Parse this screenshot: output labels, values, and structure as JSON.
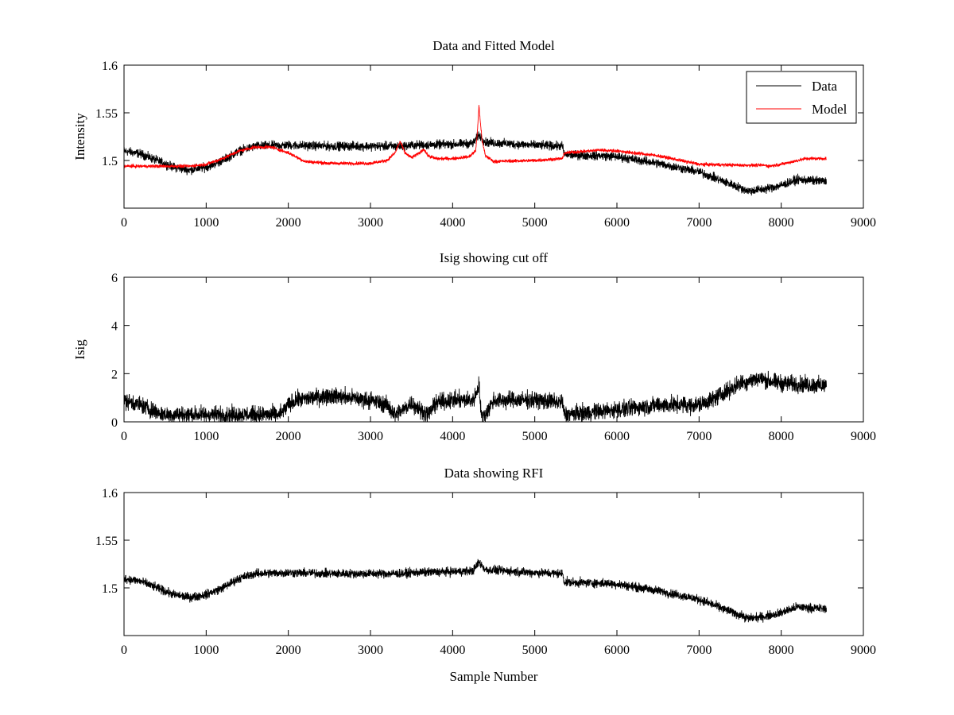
{
  "figure": {
    "background": "#ffffff",
    "data_color": "#000000",
    "model_color": "#ff0000"
  },
  "chart_data": [
    {
      "type": "line",
      "title": "Data and Fitted Model",
      "xlabel": "",
      "ylabel": "Intensity",
      "xlim": [
        0,
        9000
      ],
      "ylim": [
        1.45,
        1.6
      ],
      "xticks": [
        "0",
        "1000",
        "2000",
        "3000",
        "4000",
        "5000",
        "6000",
        "7000",
        "8000",
        "9000"
      ],
      "yticks": [
        "1.5",
        "1.55",
        "1.6"
      ],
      "ytick_values": [
        1.5,
        1.55,
        1.6
      ],
      "grid": false,
      "legend": {
        "placement": "top-right",
        "entries": [
          "Data",
          "Model"
        ]
      },
      "series": [
        {
          "name": "Data",
          "color": "#000000",
          "noise": 0.004,
          "x": [
            0,
            200,
            400,
            600,
            800,
            1000,
            1200,
            1400,
            1600,
            2000,
            2500,
            3000,
            3400,
            3500,
            4000,
            4250,
            4320,
            4400,
            5000,
            5340,
            5360,
            5800,
            6000,
            6500,
            7000,
            7300,
            7600,
            7800,
            8000,
            8200,
            8550
          ],
          "y": [
            1.51,
            1.507,
            1.5,
            1.493,
            1.49,
            1.493,
            1.5,
            1.51,
            1.515,
            1.516,
            1.515,
            1.515,
            1.515,
            1.516,
            1.517,
            1.518,
            1.527,
            1.519,
            1.516,
            1.515,
            1.506,
            1.505,
            1.504,
            1.497,
            1.488,
            1.478,
            1.468,
            1.47,
            1.474,
            1.48,
            1.478
          ]
        },
        {
          "name": "Model",
          "color": "#ff0000",
          "noise": 0.0015,
          "x": [
            0,
            500,
            800,
            1000,
            1200,
            1400,
            1600,
            1800,
            2000,
            2200,
            2500,
            2800,
            3000,
            3200,
            3300,
            3360,
            3420,
            3500,
            3600,
            3650,
            3700,
            3800,
            4000,
            4200,
            4280,
            4300,
            4320,
            4360,
            4400,
            4500,
            5000,
            5340,
            5360,
            5800,
            6000,
            6500,
            7000,
            7500,
            7800,
            7850,
            8000,
            8200,
            8300,
            8550
          ],
          "y": [
            1.494,
            1.494,
            1.494,
            1.496,
            1.502,
            1.51,
            1.514,
            1.514,
            1.508,
            1.499,
            1.497,
            1.497,
            1.497,
            1.5,
            1.508,
            1.52,
            1.508,
            1.503,
            1.508,
            1.512,
            1.505,
            1.502,
            1.502,
            1.504,
            1.51,
            1.528,
            1.557,
            1.52,
            1.505,
            1.499,
            1.5,
            1.502,
            1.508,
            1.511,
            1.51,
            1.505,
            1.496,
            1.495,
            1.495,
            1.494,
            1.496,
            1.5,
            1.502,
            1.502
          ]
        }
      ]
    },
    {
      "type": "line",
      "title": "Isig showing cut off",
      "xlabel": "",
      "ylabel": "Isig",
      "xlim": [
        0,
        9000
      ],
      "ylim": [
        0,
        6
      ],
      "xticks": [
        "0",
        "1000",
        "2000",
        "3000",
        "4000",
        "5000",
        "6000",
        "7000",
        "8000",
        "9000"
      ],
      "yticks": [
        "0",
        "2",
        "4",
        "6"
      ],
      "ytick_values": [
        0,
        2,
        4,
        6
      ],
      "grid": false,
      "series": [
        {
          "color": "#000000",
          "noise": 0.3,
          "x": [
            0,
            200,
            400,
            500,
            1000,
            1500,
            1900,
            2000,
            2100,
            2500,
            3000,
            3200,
            3300,
            3400,
            3500,
            3600,
            3700,
            3800,
            4000,
            4250,
            4300,
            4320,
            4350,
            4400,
            4500,
            5000,
            5340,
            5360,
            6000,
            6500,
            7000,
            7200,
            7500,
            7700,
            8000,
            8550
          ],
          "y": [
            0.9,
            0.7,
            0.4,
            0.3,
            0.3,
            0.3,
            0.3,
            0.7,
            0.9,
            1.1,
            0.9,
            0.7,
            0.3,
            0.5,
            0.8,
            0.5,
            0.3,
            0.8,
            0.9,
            0.9,
            1.3,
            1.6,
            0.2,
            0.3,
            0.9,
            0.9,
            0.8,
            0.3,
            0.5,
            0.7,
            0.7,
            1.0,
            1.6,
            1.8,
            1.6,
            1.5
          ]
        }
      ]
    },
    {
      "type": "line",
      "title": "Data showing RFI",
      "xlabel": "Sample Number",
      "ylabel": "",
      "xlim": [
        0,
        9000
      ],
      "ylim": [
        1.45,
        1.6
      ],
      "xticks": [
        "0",
        "1000",
        "2000",
        "3000",
        "4000",
        "5000",
        "6000",
        "7000",
        "8000",
        "9000"
      ],
      "yticks": [
        "1.5",
        "1.55",
        "1.6"
      ],
      "ytick_values": [
        1.5,
        1.55,
        1.6
      ],
      "grid": false,
      "series": [
        {
          "color": "#000000",
          "noise": 0.004,
          "x": [
            0,
            200,
            400,
            600,
            800,
            1000,
            1200,
            1400,
            1600,
            2000,
            2500,
            3000,
            3400,
            3500,
            4000,
            4250,
            4320,
            4400,
            5000,
            5340,
            5360,
            5800,
            6000,
            6500,
            7000,
            7300,
            7600,
            7800,
            8000,
            8200,
            8550
          ],
          "y": [
            1.51,
            1.507,
            1.5,
            1.493,
            1.49,
            1.493,
            1.5,
            1.51,
            1.515,
            1.516,
            1.515,
            1.515,
            1.515,
            1.516,
            1.517,
            1.518,
            1.527,
            1.519,
            1.516,
            1.515,
            1.506,
            1.505,
            1.504,
            1.497,
            1.488,
            1.478,
            1.468,
            1.47,
            1.474,
            1.48,
            1.478
          ]
        }
      ]
    }
  ]
}
